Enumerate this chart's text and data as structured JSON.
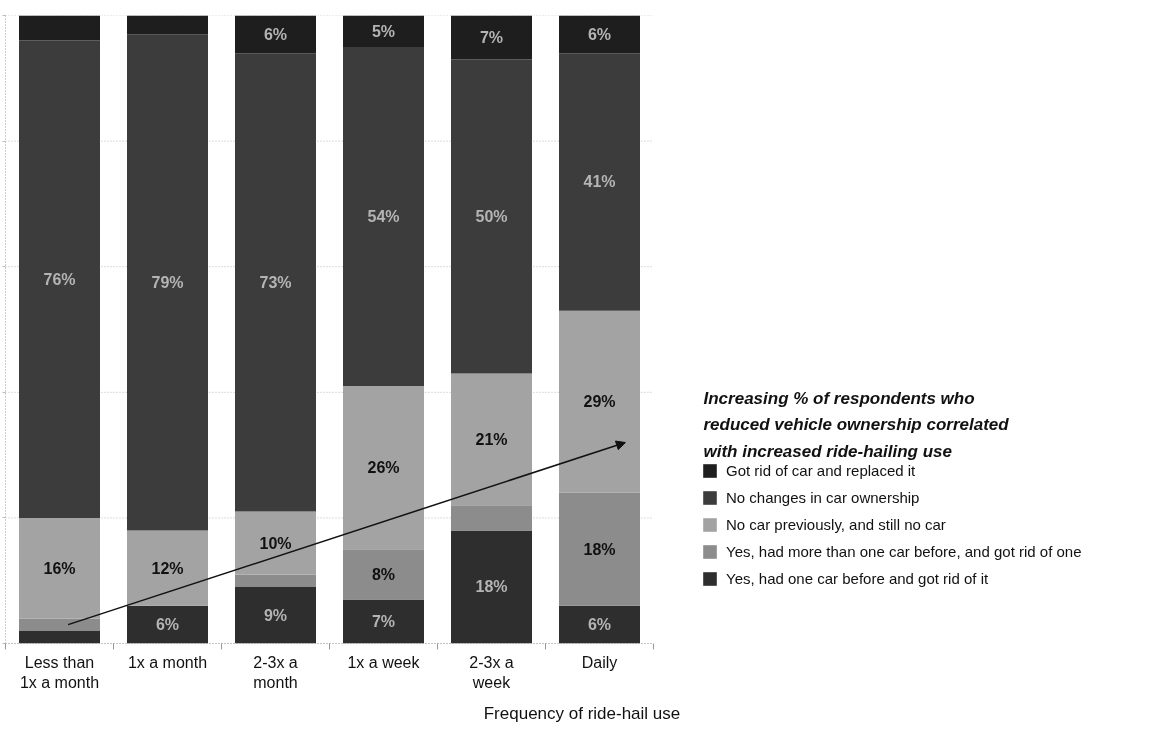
{
  "chart_data": {
    "type": "bar",
    "stacked": true,
    "categories": [
      "Less than 1x a month",
      "1x a month",
      "2-3x a month",
      "1x a week",
      "2-3x a week",
      "Daily"
    ],
    "xlabel": "Frequency of ride-hail use",
    "ylim": [
      0,
      100
    ],
    "yticks": [
      {
        "value": 0,
        "label": null
      },
      {
        "value": 20,
        "label": null
      },
      {
        "value": 40,
        "label": null
      },
      {
        "value": 60,
        "label": null
      },
      {
        "value": 80,
        "label": null
      },
      {
        "value": 100,
        "label": null
      }
    ],
    "tick_labels": "x",
    "grid": "y",
    "legend": "right",
    "annotations": [
      "Increasing % of respondents who reduced vehicle ownership correlated with increased ride-hailing use"
    ],
    "series": [
      {
        "name": "Yes, had one car before and got rid of it",
        "color": "#2e2e2e",
        "values": [
          2,
          6,
          9,
          7,
          18,
          6
        ],
        "value_labels": [
          null,
          "6%",
          "9%",
          "7%",
          "18%",
          "6%"
        ]
      },
      {
        "name": "Yes, had more than one car before, and got rid of one",
        "color": "#8c8c8c",
        "values": [
          2,
          null,
          2,
          8,
          4,
          18
        ],
        "value_labels": [
          null,
          null,
          null,
          "8%",
          null,
          "18%"
        ]
      },
      {
        "name": "No car previously, and still no car",
        "color": "#a3a3a3",
        "values": [
          16,
          12,
          10,
          26,
          21,
          29
        ],
        "value_labels": [
          "16%",
          "12%",
          "10%",
          "26%",
          "21%",
          "29%"
        ]
      },
      {
        "name": "No changes in car ownership",
        "color": "#3c3c3c",
        "values": [
          76,
          79,
          73,
          54,
          50,
          41
        ],
        "value_labels": [
          "76%",
          "79%",
          "73%",
          "54%",
          "50%",
          "41%"
        ]
      },
      {
        "name": "Got rid of car and replaced it",
        "color": "#1e1e1e",
        "values": [
          4,
          3,
          6,
          5,
          7,
          6
        ],
        "value_labels": [
          null,
          null,
          "6%",
          "5%",
          "7%",
          "6%"
        ]
      }
    ]
  }
}
